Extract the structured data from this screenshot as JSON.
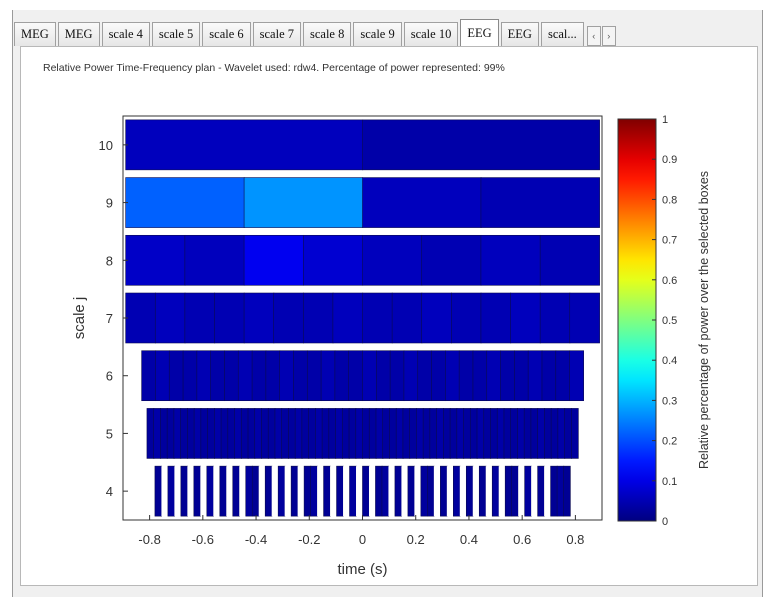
{
  "tabs": [
    {
      "label": "MEG",
      "active": false
    },
    {
      "label": "MEG",
      "active": false
    },
    {
      "label": "scale 4",
      "active": false
    },
    {
      "label": "scale 5",
      "active": false
    },
    {
      "label": "scale 6",
      "active": false
    },
    {
      "label": "scale 7",
      "active": false
    },
    {
      "label": "scale 8",
      "active": false
    },
    {
      "label": "scale 9",
      "active": false
    },
    {
      "label": "scale 10",
      "active": false
    },
    {
      "label": "EEG",
      "active": true
    },
    {
      "label": "EEG",
      "active": false
    },
    {
      "label": "scal...",
      "active": false
    }
  ],
  "tab_scroll": {
    "left": "‹",
    "right": "›"
  },
  "plot_title": "Relative Power Time-Frequency plan - Wavelet used: rdw4. Percentage of power represented: 99%",
  "chart_data": {
    "type": "heatmap",
    "title": "Relative Power Time-Frequency plan - Wavelet used: rdw4. Percentage of power represented: 99%",
    "xlabel": "time (s)",
    "ylabel": "scale j",
    "xlim": [
      -0.9,
      0.9
    ],
    "ylim": [
      3.5,
      10.5
    ],
    "xticks": [
      -0.8,
      -0.6,
      -0.4,
      -0.2,
      0,
      0.2,
      0.4,
      0.6,
      0.8
    ],
    "yticks": [
      4,
      5,
      6,
      7,
      8,
      9,
      10
    ],
    "colorbar": {
      "label": "Relative percentage of power over the selected boxes",
      "range": [
        0,
        1
      ],
      "ticks": [
        0,
        0.1,
        0.2,
        0.3,
        0.4,
        0.5,
        0.6,
        0.7,
        0.8,
        0.9,
        1
      ],
      "colormap": "jet"
    },
    "rows": [
      {
        "scale": 10,
        "x_start": -0.89,
        "x_end": 0.89,
        "values": [
          0.06,
          0.04
        ]
      },
      {
        "scale": 9,
        "x_start": -0.89,
        "x_end": 0.89,
        "values": [
          0.22,
          0.27,
          0.06,
          0.05
        ]
      },
      {
        "scale": 8,
        "x_start": -0.89,
        "x_end": 0.89,
        "values": [
          0.07,
          0.06,
          0.11,
          0.08,
          0.06,
          0.05,
          0.06,
          0.05
        ]
      },
      {
        "scale": 7,
        "x_start": -0.89,
        "x_end": 0.89,
        "values": [
          0.05,
          0.06,
          0.05,
          0.05,
          0.06,
          0.05,
          0.05,
          0.06,
          0.05,
          0.05,
          0.06,
          0.05,
          0.05,
          0.06,
          0.05,
          0.05
        ]
      },
      {
        "scale": 6,
        "x_start": -0.83,
        "x_end": 0.83,
        "values": [
          0.04,
          0.05,
          0.04,
          0.04,
          0.05,
          0.04,
          0.04,
          0.05,
          0.04,
          0.04,
          0.05,
          0.04,
          0.04,
          0.05,
          0.04,
          0.04,
          0.05,
          0.04,
          0.04,
          0.05,
          0.04,
          0.04,
          0.05,
          0.04,
          0.04,
          0.05,
          0.04,
          0.04,
          0.05,
          0.04,
          0.04,
          0.05
        ]
      },
      {
        "scale": 5,
        "x_start": -0.81,
        "x_end": 0.81,
        "values": [
          0.03,
          0.04,
          0.03,
          0.03,
          0.04,
          0.03,
          0.03,
          0.04,
          0.03,
          0.03,
          0.04,
          0.03,
          0.03,
          0.04,
          0.03,
          0.03,
          0.04,
          0.03,
          0.03,
          0.04,
          0.03,
          0.03,
          0.04,
          0.03,
          0.03,
          0.04,
          0.03,
          0.03,
          0.04,
          0.03,
          0.03,
          0.04,
          0.03,
          0.03,
          0.04,
          0.03,
          0.03,
          0.04,
          0.03,
          0.03,
          0.04,
          0.03,
          0.03,
          0.04,
          0.03,
          0.03,
          0.04,
          0.03,
          0.03,
          0.04,
          0.03,
          0.03,
          0.04,
          0.03,
          0.03,
          0.04,
          0.03,
          0.03,
          0.04,
          0.03,
          0.03,
          0.04,
          0.03,
          0.03
        ]
      },
      {
        "scale": 4,
        "x_start": -0.78,
        "x_end": 0.78,
        "values": [
          0.02,
          0,
          0.03,
          0,
          0.02,
          0,
          0.02,
          0,
          0.03,
          0,
          0.02,
          0,
          0.02,
          0,
          0.03,
          0.02,
          0,
          0.02,
          0,
          0.03,
          0,
          0.02,
          0,
          0.02,
          0.03,
          0,
          0.02,
          0,
          0.02,
          0,
          0.03,
          0,
          0.02,
          0,
          0.02,
          0.03,
          0,
          0.02,
          0,
          0.02,
          0,
          0.03,
          0.02,
          0,
          0.02,
          0,
          0.03,
          0,
          0.02,
          0,
          0.02,
          0,
          0.03,
          0,
          0.02,
          0.02,
          0,
          0.03,
          0,
          0.02,
          0,
          0.02,
          0.03,
          0.02
        ]
      }
    ]
  }
}
